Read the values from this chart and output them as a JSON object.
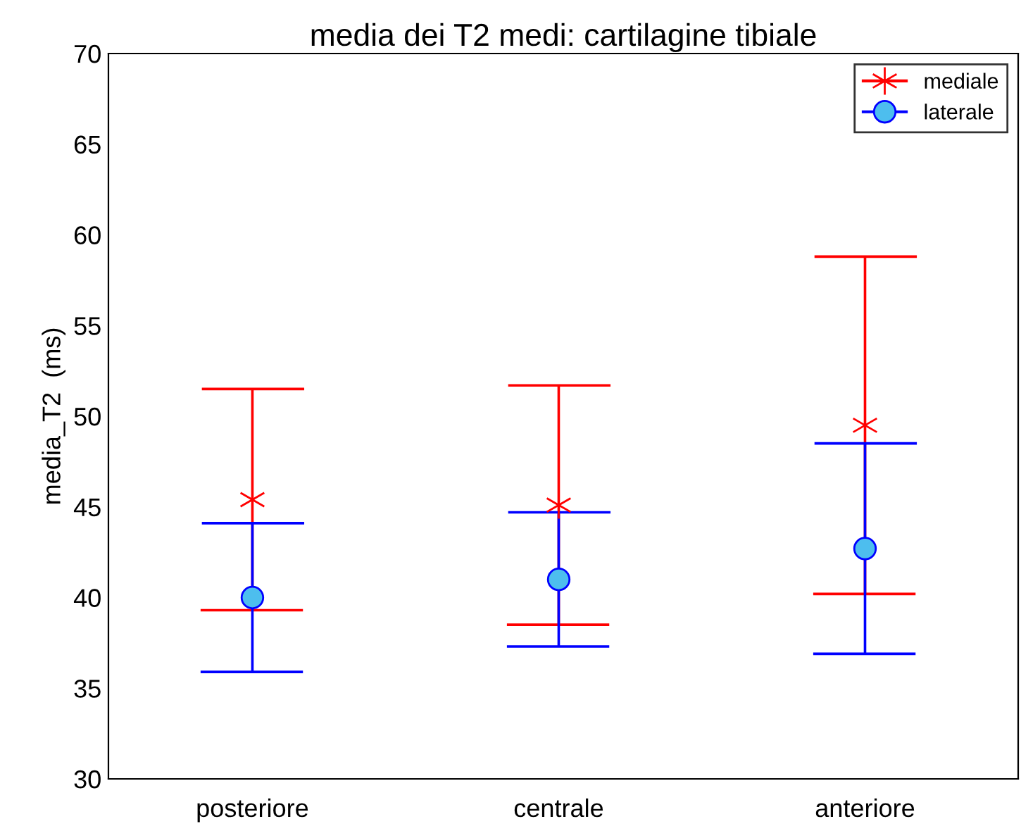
{
  "chart_data": {
    "type": "scatter",
    "title": "media dei T2 medi: cartilagine tibiale",
    "ylabel": "media_T2  (ms)",
    "categories": [
      "posteriore",
      "centrale",
      "anteriore"
    ],
    "series": [
      {
        "name": "mediale",
        "color": "#ff0000",
        "marker": "cross",
        "values": [
          45.4,
          45.1,
          49.5
        ],
        "errors": [
          6.1,
          6.6,
          9.3
        ]
      },
      {
        "name": "laterale",
        "color": "#0000ff",
        "marker": "circle",
        "values": [
          40.0,
          41.0,
          42.7
        ],
        "errors": [
          4.1,
          3.7,
          5.8
        ]
      }
    ],
    "ylim": [
      30,
      70
    ],
    "yticks": [
      30,
      35,
      40,
      45,
      50,
      55,
      60,
      65,
      70
    ],
    "grid": false,
    "legend": "top right"
  }
}
